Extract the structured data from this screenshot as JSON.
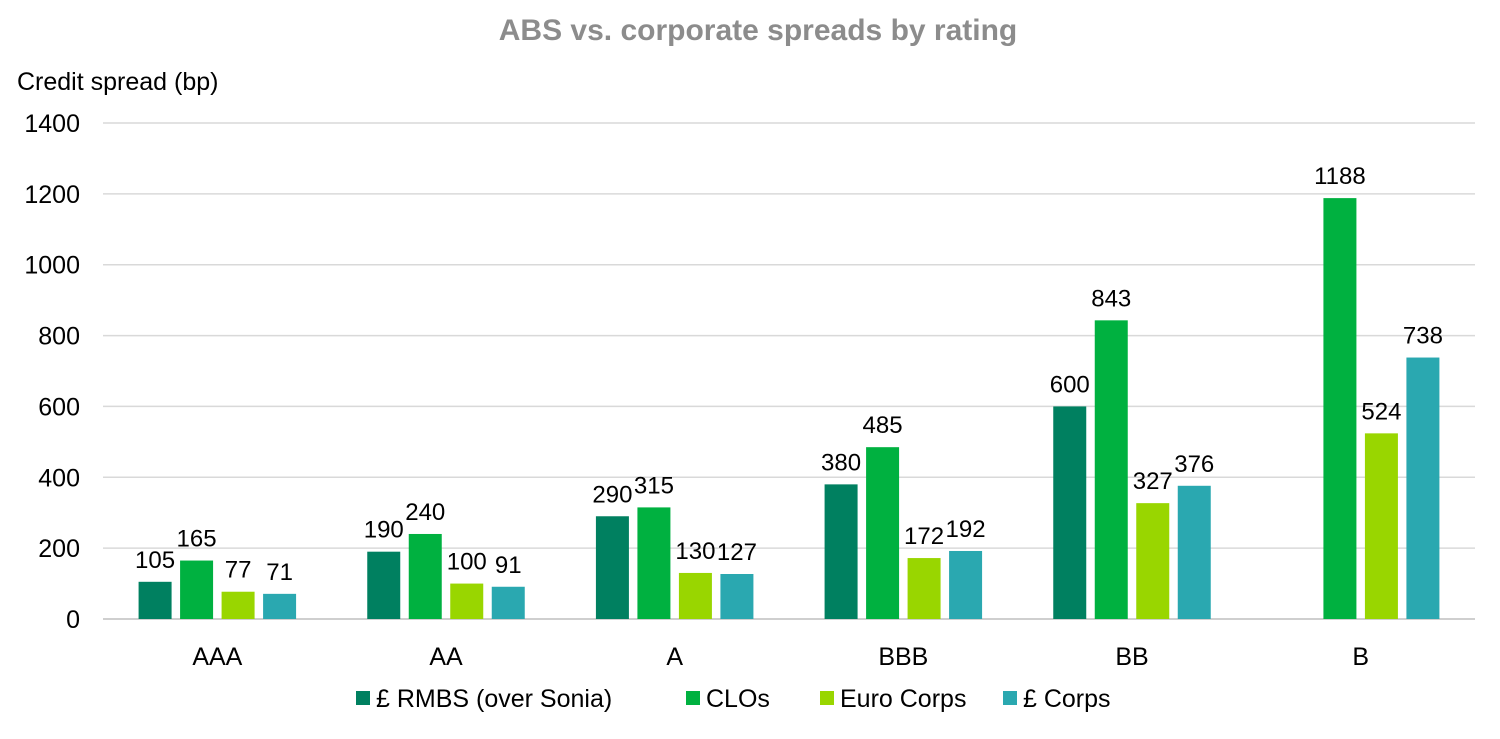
{
  "chart_data": {
    "type": "bar",
    "title": "ABS vs. corporate spreads by rating",
    "ylabel": "Credit spread (bp)",
    "xlabel": "",
    "ylim": [
      0,
      1400
    ],
    "yticks": [
      0,
      200,
      400,
      600,
      800,
      1000,
      1200,
      1400
    ],
    "grid": true,
    "legend_position": "bottom",
    "categories": [
      "AAA",
      "AA",
      "A",
      "BBB",
      "BB",
      "B"
    ],
    "series": [
      {
        "name": "£ RMBS (over Sonia)",
        "color": "#008060",
        "values": [
          105,
          190,
          290,
          380,
          600,
          null
        ]
      },
      {
        "name": "CLOs",
        "color": "#00b140",
        "values": [
          165,
          240,
          315,
          485,
          843,
          1188
        ]
      },
      {
        "name": "Euro Corps",
        "color": "#99d600",
        "values": [
          77,
          100,
          130,
          172,
          327,
          524
        ]
      },
      {
        "name": "£ Corps",
        "color": "#2aa8b0",
        "values": [
          71,
          91,
          127,
          192,
          376,
          738
        ]
      }
    ]
  }
}
